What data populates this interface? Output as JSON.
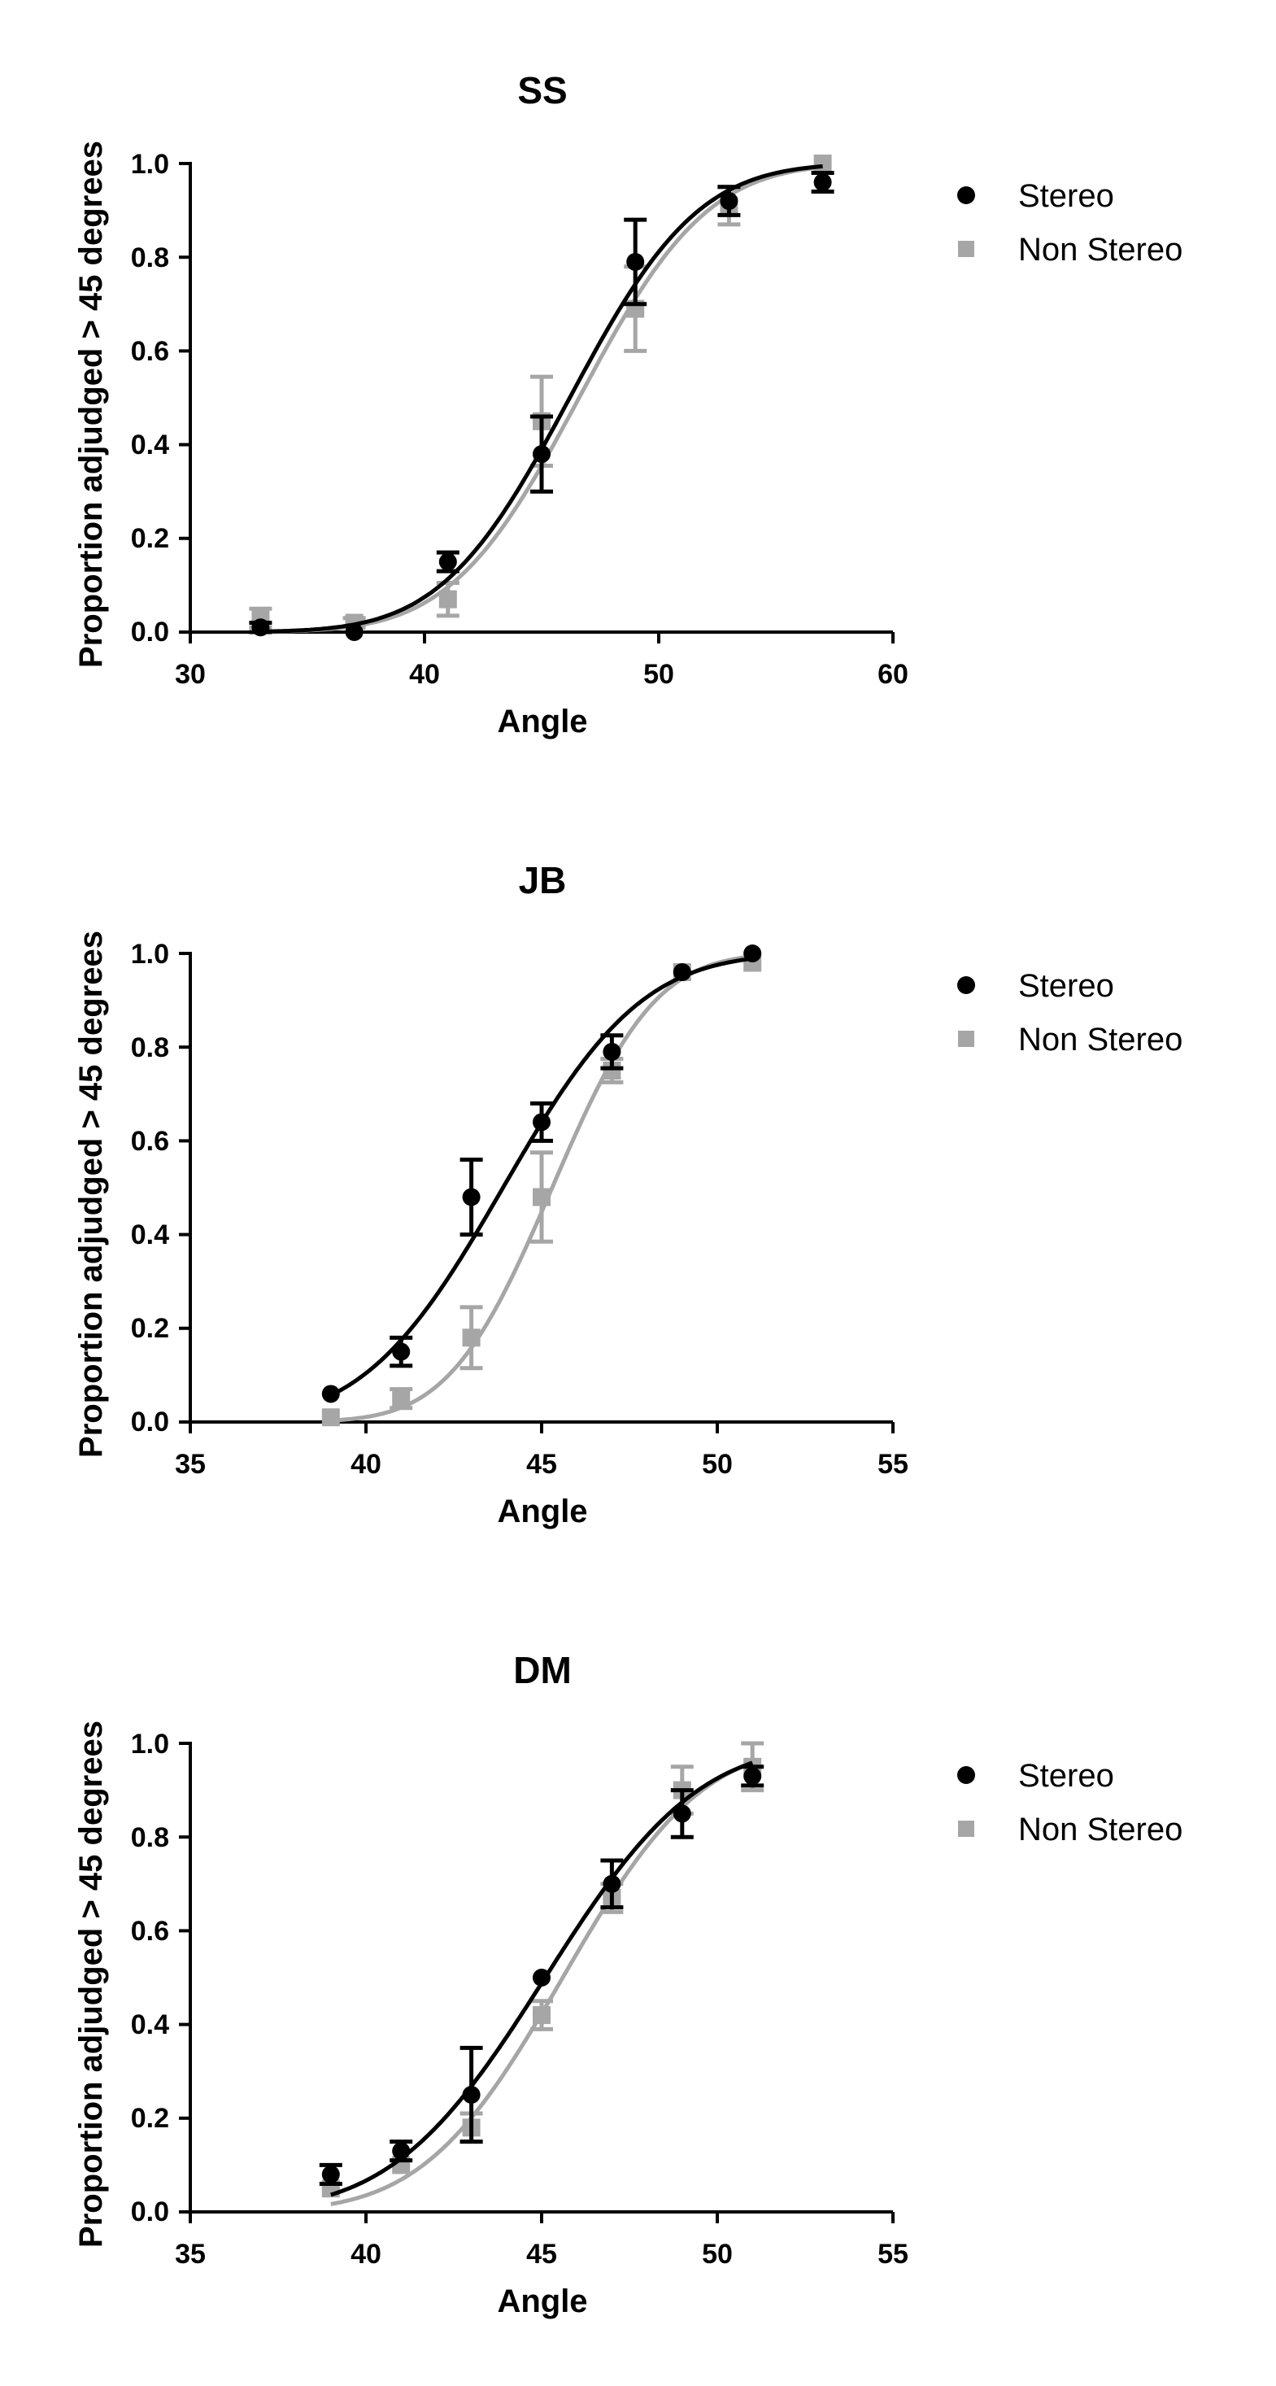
{
  "chart_data": [
    {
      "type": "scatter",
      "title": "SS",
      "xlabel": "Angle",
      "ylabel": "Proportion adjudged > 45 degrees",
      "xlim": [
        30,
        60
      ],
      "ylim": [
        0,
        1
      ],
      "x_ticks": [
        30,
        40,
        50,
        60
      ],
      "x_tick_labels": [
        "30",
        "40",
        "50",
        "60"
      ],
      "y_ticks": [
        0,
        0.2,
        0.4,
        0.6,
        0.8,
        1
      ],
      "y_tick_labels": [
        "0.0",
        "0.2",
        "0.4",
        "0.6",
        "0.8",
        "1.0"
      ],
      "legend_position": "right",
      "series": [
        {
          "name": "Stereo",
          "marker": "circle",
          "color": "#000000",
          "x": [
            33,
            37,
            41,
            45,
            49,
            53,
            57
          ],
          "y": [
            0.01,
            0.0,
            0.15,
            0.38,
            0.79,
            0.92,
            0.96
          ],
          "err": [
            0.01,
            0.0,
            0.02,
            0.08,
            0.09,
            0.03,
            0.02
          ],
          "fit": {
            "mu": 46.2,
            "sigma": 4.3
          }
        },
        {
          "name": "Non Stereo",
          "marker": "square",
          "color": "#a6a6a6",
          "x": [
            33,
            37,
            41,
            45,
            49,
            53,
            57
          ],
          "y": [
            0.03,
            0.02,
            0.07,
            0.45,
            0.69,
            0.91,
            1.0
          ],
          "err": [
            0.02,
            0.01,
            0.035,
            0.095,
            0.09,
            0.04,
            0.0
          ],
          "fit": {
            "mu": 46.6,
            "sigma": 4.3
          }
        }
      ]
    },
    {
      "type": "scatter",
      "title": "JB",
      "xlabel": "Angle",
      "ylabel": "Proportion adjudged > 45 degrees",
      "xlim": [
        35,
        55
      ],
      "ylim": [
        0,
        1
      ],
      "x_ticks": [
        35,
        40,
        45,
        50,
        55
      ],
      "x_tick_labels": [
        "35",
        "40",
        "45",
        "50",
        "55"
      ],
      "y_ticks": [
        0,
        0.2,
        0.4,
        0.6,
        0.8,
        1
      ],
      "y_tick_labels": [
        "0.0",
        "0.2",
        "0.4",
        "0.6",
        "0.8",
        "1.0"
      ],
      "legend_position": "right",
      "series": [
        {
          "name": "Stereo",
          "marker": "circle",
          "color": "#000000",
          "x": [
            39,
            41,
            43,
            45,
            47,
            49,
            51
          ],
          "y": [
            0.06,
            0.15,
            0.48,
            0.64,
            0.79,
            0.96,
            1.0
          ],
          "err": [
            0.0,
            0.03,
            0.08,
            0.04,
            0.035,
            0.0,
            0.0
          ],
          "fit": {
            "mu": 43.9,
            "sigma": 3.1
          }
        },
        {
          "name": "Non Stereo",
          "marker": "square",
          "color": "#a6a6a6",
          "x": [
            39,
            41,
            43,
            45,
            47,
            49,
            51
          ],
          "y": [
            0.01,
            0.05,
            0.18,
            0.48,
            0.75,
            0.96,
            0.98
          ],
          "err": [
            0.0,
            0.02,
            0.065,
            0.095,
            0.025,
            0.0,
            0.0
          ],
          "fit": {
            "mu": 45.3,
            "sigma": 2.3
          }
        }
      ]
    },
    {
      "type": "scatter",
      "title": "DM",
      "xlabel": "Angle",
      "ylabel": "Proportion adjudged > 45 degrees",
      "xlim": [
        35,
        55
      ],
      "ylim": [
        0,
        1
      ],
      "x_ticks": [
        35,
        40,
        45,
        50,
        55
      ],
      "x_tick_labels": [
        "35",
        "40",
        "45",
        "50",
        "55"
      ],
      "y_ticks": [
        0,
        0.2,
        0.4,
        0.6,
        0.8,
        1
      ],
      "y_tick_labels": [
        "0.0",
        "0.2",
        "0.4",
        "0.6",
        "0.8",
        "1.0"
      ],
      "legend_position": "right",
      "series": [
        {
          "name": "Stereo",
          "marker": "circle",
          "color": "#000000",
          "x": [
            39,
            41,
            43,
            45,
            47,
            49,
            51
          ],
          "y": [
            0.08,
            0.13,
            0.25,
            0.5,
            0.7,
            0.85,
            0.93
          ],
          "err": [
            0.02,
            0.02,
            0.1,
            0.0,
            0.05,
            0.05,
            0.02
          ],
          "fit": {
            "mu": 45.1,
            "sigma": 3.4
          }
        },
        {
          "name": "Non Stereo",
          "marker": "square",
          "color": "#a6a6a6",
          "x": [
            39,
            41,
            43,
            45,
            47,
            49,
            51
          ],
          "y": [
            0.05,
            0.1,
            0.18,
            0.42,
            0.67,
            0.9,
            0.95
          ],
          "err": [
            0.0,
            0.0,
            0.03,
            0.03,
            0.03,
            0.05,
            0.05
          ],
          "fit": {
            "mu": 45.6,
            "sigma": 3.1
          }
        }
      ]
    }
  ]
}
